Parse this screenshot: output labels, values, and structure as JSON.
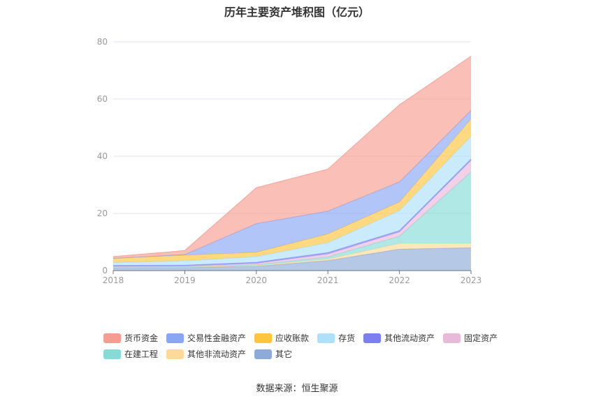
{
  "chart_data": {
    "type": "area",
    "stacked": true,
    "title": "历年主要资产堆积图（亿元）",
    "x": [
      "2018",
      "2019",
      "2020",
      "2021",
      "2022",
      "2023"
    ],
    "ylim": [
      0,
      80
    ],
    "yticks": [
      0,
      20,
      40,
      60,
      80
    ],
    "grid": true,
    "legend_position": "bottom",
    "series": [
      {
        "name": "其它",
        "color": "#8eaad8",
        "values": [
          1.0,
          1.0,
          1.5,
          3.5,
          7.5,
          8.0
        ]
      },
      {
        "name": "其他非流动资产",
        "color": "#ffd99a",
        "values": [
          0.2,
          0.2,
          0.3,
          0.5,
          2.0,
          1.5
        ]
      },
      {
        "name": "在建工程",
        "color": "#86dbd7",
        "values": [
          0.1,
          0.1,
          0.2,
          0.8,
          2.5,
          25.0
        ]
      },
      {
        "name": "固定资产",
        "color": "#e8b9d9",
        "values": [
          0.2,
          0.3,
          0.5,
          1.0,
          1.5,
          4.0
        ]
      },
      {
        "name": "其他流动资产",
        "color": "#7b7ff0",
        "values": [
          0.3,
          0.3,
          0.4,
          0.5,
          0.5,
          0.5
        ]
      },
      {
        "name": "存货",
        "color": "#aee0fa",
        "values": [
          1.0,
          1.5,
          2.0,
          3.5,
          7.0,
          8.0
        ]
      },
      {
        "name": "应收账款",
        "color": "#ffc53d",
        "values": [
          1.5,
          2.0,
          1.5,
          3.0,
          3.0,
          6.0
        ]
      },
      {
        "name": "交易性金融资产",
        "color": "#89a6f5",
        "values": [
          0.0,
          0.2,
          10.0,
          8.0,
          7.0,
          3.0
        ]
      },
      {
        "name": "货币资金",
        "color": "#f79c90",
        "values": [
          0.6,
          1.4,
          12.6,
          14.7,
          27.0,
          19.0
        ]
      }
    ]
  },
  "legend_order": [
    "货币资金",
    "交易性金融资产",
    "应收账款",
    "存货",
    "其他流动资产",
    "固定资产",
    "在建工程",
    "其他非流动资产",
    "其它"
  ],
  "source_text": "数据来源：恒生聚源"
}
